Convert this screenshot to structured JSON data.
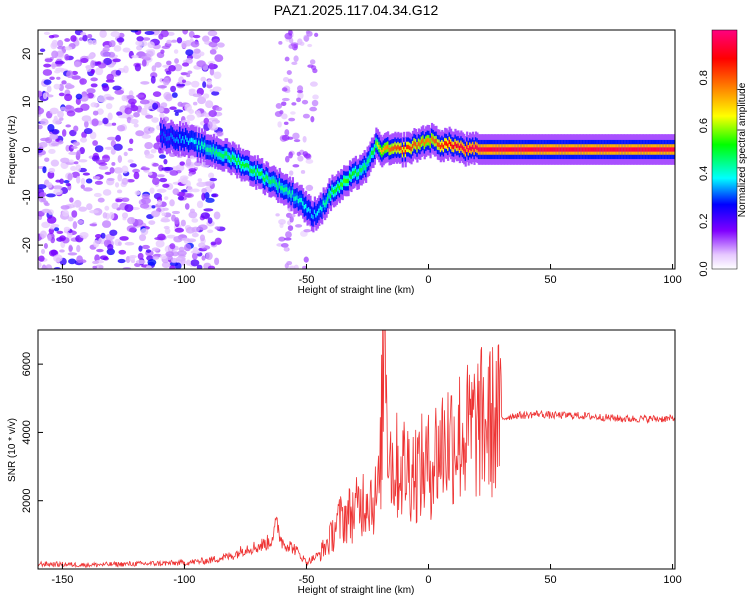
{
  "chart_data": [
    {
      "type": "heatmap",
      "title": "PAZ1.2025.117.04.34.G12",
      "xlabel": "Height of straight line (km)",
      "ylabel": "Frequency (Hz)",
      "xlim": [
        -160,
        101
      ],
      "ylim": [
        -25,
        25
      ],
      "x_ticks": [
        -150,
        -100,
        -50,
        0,
        50,
        100
      ],
      "y_ticks": [
        -20,
        -10,
        0,
        10,
        20
      ],
      "colorbar": {
        "label": "Normalized spectral amplitude",
        "range": [
          0,
          1
        ],
        "ticks": [
          "0.0",
          "0.2",
          "0.4",
          "0.6",
          "0.8"
        ],
        "colors": [
          "#ffffff",
          "#e6c8ff",
          "#8000ff",
          "#0000ff",
          "#00ffff",
          "#00ff00",
          "#ffff00",
          "#ff8000",
          "#ff0000",
          "#ff0080"
        ]
      },
      "ridge": {
        "x": [
          -110,
          -100,
          -90,
          -80,
          -70,
          -60,
          -52,
          -48,
          -44,
          -40,
          -35,
          -30,
          -25,
          -22,
          -20,
          -15,
          -10,
          -5,
          0,
          5,
          10,
          15,
          20,
          50,
          101
        ],
        "y": [
          3,
          2,
          0,
          -2,
          -5,
          -8,
          -11,
          -14,
          -12,
          -9,
          -7,
          -5,
          -3,
          1,
          0,
          0,
          0,
          1,
          2,
          1,
          1,
          0,
          0,
          0,
          0
        ],
        "amplitude": [
          0.3,
          0.35,
          0.45,
          0.5,
          0.5,
          0.45,
          0.4,
          0.35,
          0.4,
          0.5,
          0.55,
          0.5,
          0.45,
          0.55,
          0.7,
          0.8,
          0.85,
          0.8,
          0.75,
          0.85,
          0.9,
          0.95,
          0.95,
          0.95,
          0.95
        ]
      }
    },
    {
      "type": "line",
      "xlabel": "Height of straight line (km)",
      "ylabel": "SNR (10 * v/v)",
      "xlim": [
        -160,
        101
      ],
      "ylim": [
        0,
        7000
      ],
      "x_ticks": [
        -150,
        -100,
        -50,
        0,
        50,
        100
      ],
      "y_ticks": [
        2000,
        4000,
        6000
      ],
      "color": "#ee3333",
      "series": [
        {
          "x": [
            -160,
            -140,
            -120,
            -100,
            -90,
            -80,
            -75,
            -70,
            -65,
            -62,
            -60,
            -55,
            -50,
            -45,
            -42,
            -40,
            -38,
            -35,
            -30,
            -25,
            -22,
            -20,
            -18,
            -17,
            -15,
            -10,
            -5,
            0,
            5,
            10,
            15,
            20,
            25,
            30,
            35,
            40,
            45,
            50,
            60,
            70,
            80,
            90,
            101
          ],
          "y": [
            150,
            120,
            150,
            180,
            250,
            400,
            600,
            650,
            800,
            1300,
            800,
            600,
            200,
            400,
            700,
            900,
            1300,
            1500,
            1700,
            2200,
            2000,
            2400,
            7000,
            4700,
            3000,
            3000,
            2900,
            3000,
            3600,
            3900,
            3900,
            4200,
            4300,
            4400,
            4500,
            4500,
            4550,
            4500,
            4500,
            4450,
            4400,
            4400,
            4400
          ]
        }
      ]
    }
  ]
}
